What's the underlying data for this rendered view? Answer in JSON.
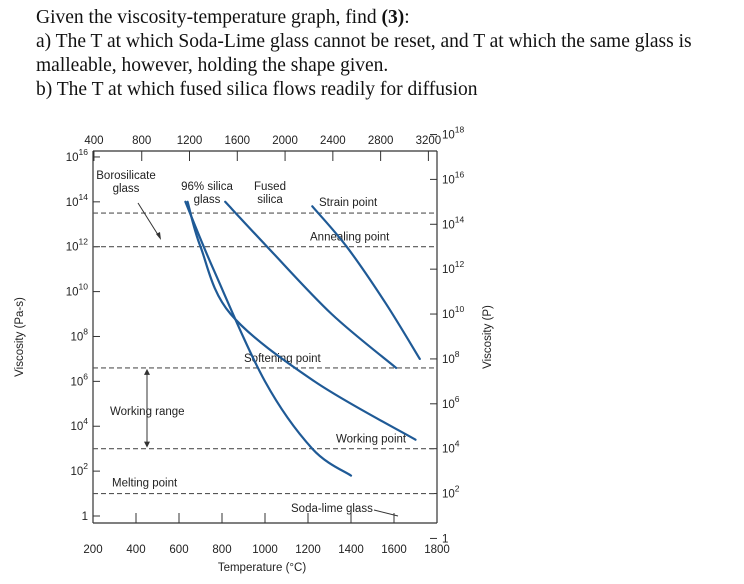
{
  "question": {
    "line1_prefix": "Given the viscosity-temperature graph, find ",
    "line1_bold": "(3)",
    "line1_suffix": ":",
    "part_a_line1": "a) The T at which Soda-Lime glass cannot be reset, and T at which the same glass is",
    "part_a_line2": "malleable, however, holding the shape given.",
    "part_b": "b) The T at which fused silica flows readily for diffusion"
  },
  "chart_data": {
    "type": "line",
    "title": "",
    "xlabel": "Temperature (°C)",
    "xlabel_top": "",
    "ylabel_left": "Viscosity (Pa-s)",
    "ylabel_right": "Viscosity (P)",
    "x_ticks_bottom": [
      "200",
      "400",
      "600",
      "800",
      "1000",
      "1200",
      "1400",
      "1600",
      "1800"
    ],
    "x_ticks_top": [
      "400",
      "800",
      "1200",
      "1600",
      "2000",
      "2400",
      "2800",
      "3200"
    ],
    "y_ticks_left": [
      {
        "base": "10",
        "exp": "16"
      },
      {
        "base": "10",
        "exp": "14"
      },
      {
        "base": "10",
        "exp": "12"
      },
      {
        "base": "10",
        "exp": "10"
      },
      {
        "base": "10",
        "exp": "8"
      },
      {
        "base": "10",
        "exp": "6"
      },
      {
        "base": "10",
        "exp": "4"
      },
      {
        "base": "10",
        "exp": "2"
      },
      {
        "base": "1",
        "exp": ""
      }
    ],
    "y_ticks_right": [
      {
        "base": "10",
        "exp": "18"
      },
      {
        "base": "10",
        "exp": "16"
      },
      {
        "base": "10",
        "exp": "14"
      },
      {
        "base": "10",
        "exp": "12"
      },
      {
        "base": "10",
        "exp": "10"
      },
      {
        "base": "10",
        "exp": "8"
      },
      {
        "base": "10",
        "exp": "6"
      },
      {
        "base": "10",
        "exp": "4"
      },
      {
        "base": "10",
        "exp": "2"
      },
      {
        "base": "1",
        "exp": ""
      }
    ],
    "reference_lines": [
      {
        "label": "Strain point",
        "log_pa_s": 13.5
      },
      {
        "label": "Annealing point",
        "log_pa_s": 12.0
      },
      {
        "label": "Softening point",
        "log_pa_s": 6.6
      },
      {
        "label": "Working point",
        "log_pa_s": 3.0
      },
      {
        "label": "Melting point",
        "log_pa_s": 1.0
      }
    ],
    "range_annotation": {
      "label": "Working range"
    },
    "series": [
      {
        "name": "Borosilicate glass",
        "points": [
          [
            630,
            14.0
          ],
          [
            760,
            11.0
          ],
          [
            1000,
            6.0
          ],
          [
            1220,
            3.0
          ],
          [
            1400,
            1.8
          ]
        ]
      },
      {
        "name": "96% silica glass",
        "points": [
          [
            640,
            14.0
          ],
          [
            700,
            12.0
          ],
          [
            840,
            9.0
          ],
          [
            1230,
            6.0
          ],
          [
            1700,
            3.4
          ]
        ]
      },
      {
        "name": "Fused silica",
        "points": [
          [
            815,
            14.0
          ],
          [
            1010,
            12.0
          ],
          [
            1310,
            9.0
          ],
          [
            1610,
            6.6
          ]
        ]
      },
      {
        "name": "Soda-lime glass",
        "points": [
          [
            1220,
            13.8
          ],
          [
            1380,
            12.0
          ],
          [
            1560,
            9.5
          ],
          [
            1720,
            7.0
          ]
        ]
      }
    ],
    "curve_labels": [
      {
        "text": [
          "Borosilicate",
          "glass"
        ]
      },
      {
        "text": [
          "96% silica",
          "glass"
        ]
      },
      {
        "text": [
          "Fused",
          "silica"
        ]
      },
      {
        "text": [
          "Soda-lime glass"
        ]
      }
    ]
  }
}
